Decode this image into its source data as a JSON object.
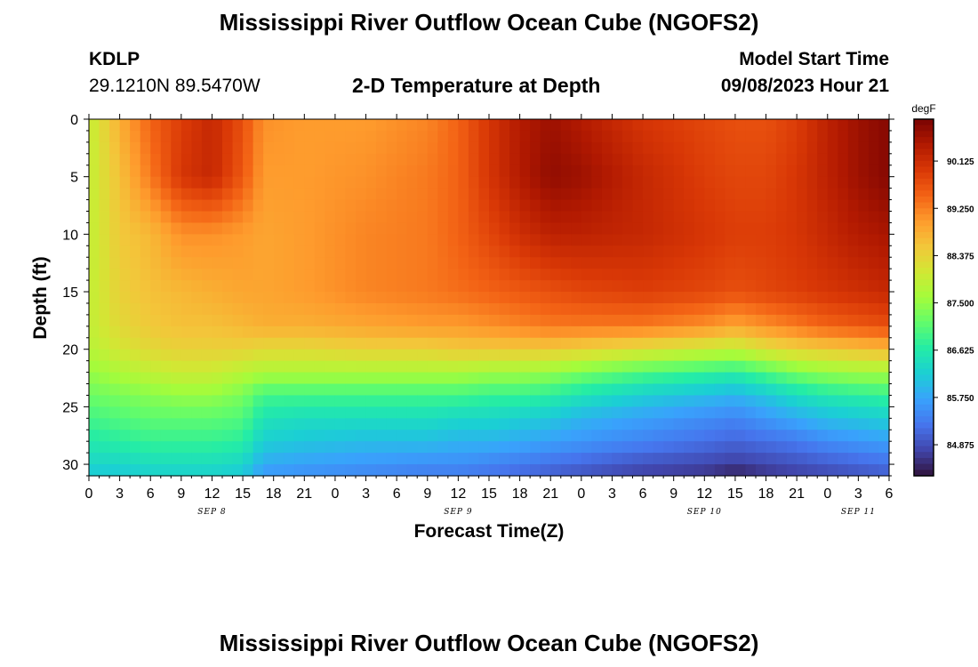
{
  "header": {
    "title": "Mississippi River Outflow Ocean Cube (NGOFS2)",
    "station": "KDLP",
    "coords": "29.1210N  89.5470W",
    "subtitle": "2-D Temperature at Depth",
    "model_start_label": "Model Start Time",
    "model_start_value": "09/08/2023 Hour 21"
  },
  "footer": {
    "title": "Mississippi River Outflow Ocean Cube (NGOFS2)"
  },
  "chart_data": {
    "type": "heatmap",
    "xlabel": "Forecast Time(Z)",
    "ylabel": "Depth (ft)",
    "x_ticks": [
      "0",
      "3",
      "6",
      "9",
      "12",
      "15",
      "18",
      "21",
      "0",
      "3",
      "6",
      "9",
      "12",
      "15",
      "18",
      "21",
      "0",
      "3",
      "6",
      "9",
      "12",
      "15",
      "18",
      "21",
      "0",
      "3",
      "6"
    ],
    "date_labels": [
      {
        "label": "SEP 8",
        "hour": 12
      },
      {
        "label": "SEP 9",
        "hour": 36
      },
      {
        "label": "SEP 10",
        "hour": 60
      },
      {
        "label": "SEP 11",
        "hour": 75
      }
    ],
    "x_range_hours": [
      0,
      78
    ],
    "y_ticks": [
      0,
      5,
      10,
      15,
      20,
      25,
      30
    ],
    "y_range_ft": [
      0,
      31
    ],
    "y_inverted": true,
    "colorbar": {
      "unit": "degF",
      "ticks": [
        "90.125",
        "89.250",
        "88.375",
        "87.500",
        "86.625",
        "85.750",
        "84.875"
      ],
      "range": [
        84.3,
        90.9
      ],
      "colors": [
        "#30123b",
        "#4145ab",
        "#4675ed",
        "#39a2fc",
        "#1bcfd4",
        "#24eca6",
        "#61fc6c",
        "#a4fc3b",
        "#d1e834",
        "#f3c63a",
        "#fe9b2d",
        "#f36315",
        "#d93806",
        "#b11901",
        "#7a0402"
      ]
    },
    "profile_depths_ft": [
      0,
      5,
      10,
      15,
      18,
      20,
      22,
      24,
      26,
      28,
      30,
      31
    ],
    "profiles": [
      {
        "hour": 0,
        "temps": [
          87.9,
          87.9,
          87.9,
          87.9,
          87.9,
          87.8,
          87.5,
          87.2,
          86.9,
          86.6,
          86.3,
          86.1
        ]
      },
      {
        "hour": 3,
        "temps": [
          88.8,
          88.6,
          88.5,
          88.4,
          88.3,
          88.1,
          87.7,
          87.3,
          87.0,
          86.7,
          86.3,
          86.1
        ]
      },
      {
        "hour": 6,
        "temps": [
          89.5,
          89.3,
          88.7,
          88.6,
          88.5,
          88.3,
          87.9,
          87.4,
          87.1,
          86.8,
          86.4,
          86.2
        ]
      },
      {
        "hour": 9,
        "temps": [
          89.9,
          90.0,
          89.1,
          88.7,
          88.6,
          88.4,
          88.0,
          87.5,
          87.1,
          86.8,
          86.4,
          86.2
        ]
      },
      {
        "hour": 12,
        "temps": [
          90.2,
          90.2,
          89.1,
          88.8,
          88.6,
          88.4,
          88.0,
          87.5,
          87.1,
          86.8,
          86.4,
          86.2
        ]
      },
      {
        "hour": 15,
        "temps": [
          89.7,
          89.6,
          89.0,
          88.9,
          88.7,
          88.4,
          87.8,
          87.3,
          87.0,
          86.7,
          86.3,
          86.1
        ]
      },
      {
        "hour": 17,
        "temps": [
          89.1,
          89.0,
          88.9,
          88.9,
          88.8,
          88.3,
          87.7,
          86.9,
          86.5,
          86.2,
          85.8,
          85.6
        ]
      },
      {
        "hour": 21,
        "temps": [
          89.0,
          89.0,
          89.0,
          89.0,
          88.8,
          88.3,
          87.7,
          86.9,
          86.4,
          86.1,
          85.7,
          85.5
        ]
      },
      {
        "hour": 27,
        "temps": [
          89.0,
          89.1,
          89.2,
          89.2,
          88.9,
          88.4,
          87.7,
          86.9,
          86.4,
          86.0,
          85.6,
          85.4
        ]
      },
      {
        "hour": 33,
        "temps": [
          89.2,
          89.3,
          89.3,
          89.3,
          89.0,
          88.4,
          87.7,
          86.9,
          86.4,
          86.0,
          85.5,
          85.3
        ]
      },
      {
        "hour": 36,
        "temps": [
          89.5,
          89.5,
          89.5,
          89.4,
          89.0,
          88.5,
          87.7,
          86.9,
          86.3,
          85.9,
          85.5,
          85.3
        ]
      },
      {
        "hour": 39,
        "temps": [
          90.0,
          90.0,
          89.8,
          89.5,
          89.1,
          88.5,
          87.6,
          86.8,
          86.3,
          85.9,
          85.4,
          85.2
        ]
      },
      {
        "hour": 42,
        "temps": [
          90.4,
          90.4,
          90.1,
          89.6,
          89.2,
          88.5,
          87.6,
          86.8,
          86.2,
          85.8,
          85.3,
          85.1
        ]
      },
      {
        "hour": 45,
        "temps": [
          90.6,
          90.7,
          90.3,
          89.7,
          89.3,
          88.5,
          87.5,
          86.7,
          86.1,
          85.7,
          85.2,
          85.0
        ]
      },
      {
        "hour": 48,
        "temps": [
          90.4,
          90.6,
          90.3,
          89.8,
          89.3,
          88.4,
          87.3,
          86.5,
          85.9,
          85.6,
          85.1,
          84.9
        ]
      },
      {
        "hour": 54,
        "temps": [
          90.0,
          90.2,
          90.2,
          89.9,
          89.3,
          88.2,
          87.0,
          86.2,
          85.7,
          85.4,
          84.9,
          84.7
        ]
      },
      {
        "hour": 60,
        "temps": [
          89.8,
          89.9,
          90.0,
          89.8,
          89.1,
          88.0,
          86.8,
          86.0,
          85.5,
          85.2,
          84.8,
          84.6
        ]
      },
      {
        "hour": 63,
        "temps": [
          89.7,
          89.8,
          89.9,
          89.7,
          88.9,
          87.9,
          86.7,
          85.9,
          85.4,
          85.1,
          84.7,
          84.4
        ]
      },
      {
        "hour": 66,
        "temps": [
          89.7,
          89.8,
          89.9,
          89.8,
          89.1,
          88.2,
          87.0,
          86.1,
          85.6,
          85.2,
          84.8,
          84.6
        ]
      },
      {
        "hour": 69,
        "temps": [
          89.9,
          90.0,
          90.0,
          89.9,
          89.3,
          88.4,
          87.3,
          86.4,
          85.8,
          85.3,
          84.9,
          84.7
        ]
      },
      {
        "hour": 72,
        "temps": [
          90.3,
          90.3,
          90.2,
          90.0,
          89.5,
          88.5,
          87.5,
          86.6,
          86.0,
          85.5,
          85.0,
          84.8
        ]
      },
      {
        "hour": 75,
        "temps": [
          90.6,
          90.6,
          90.4,
          90.1,
          89.6,
          88.6,
          87.6,
          86.7,
          86.1,
          85.6,
          85.1,
          84.9
        ]
      },
      {
        "hour": 78,
        "temps": [
          90.8,
          90.8,
          90.5,
          90.2,
          89.7,
          88.7,
          87.6,
          86.8,
          86.2,
          85.7,
          85.2,
          85.0
        ]
      }
    ]
  }
}
